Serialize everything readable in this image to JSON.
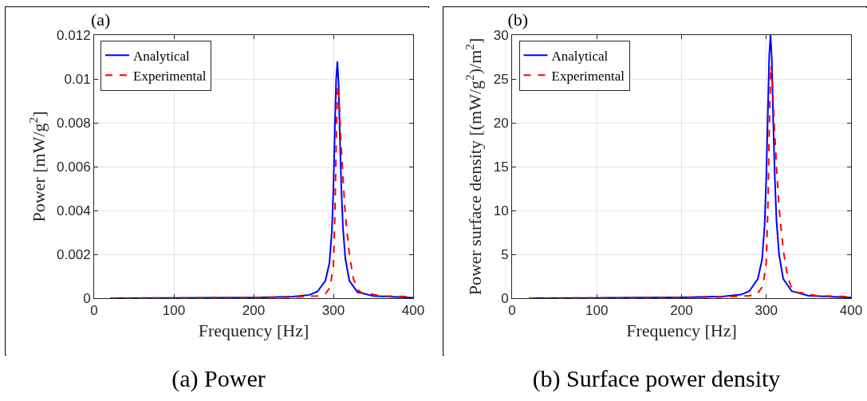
{
  "chart_data": [
    {
      "type": "line",
      "title": "(a)",
      "xlabel": "Frequency [Hz]",
      "ylabel": "Power [mW/g$^{2}$]",
      "annotations": [
        "(a) Power"
      ],
      "xlim": [
        0,
        400
      ],
      "xticks": [
        0,
        100,
        200,
        300,
        400
      ],
      "ylim": [
        0,
        0.012
      ],
      "yticks": [
        0,
        0.002,
        0.004,
        0.006,
        0.008,
        0.01,
        0.012
      ],
      "grid": true,
      "legend": "top left",
      "series": [
        {
          "name": "Analytical",
          "color": "#0000ff",
          "line_style": "solid",
          "x": [
            20,
            100,
            200,
            250,
            270,
            280,
            290,
            295,
            298,
            300,
            302,
            303.5,
            305,
            306.5,
            308,
            310,
            312,
            315,
            320,
            330,
            350,
            400
          ],
          "values": [
            0,
            1e-05,
            3e-05,
            7e-05,
            0.00015,
            0.0003,
            0.0008,
            0.0016,
            0.003,
            0.005,
            0.008,
            0.01,
            0.0108,
            0.0098,
            0.0075,
            0.005,
            0.0032,
            0.0018,
            0.0008,
            0.00028,
            0.0001,
            2e-05
          ]
        },
        {
          "name": "Experimental",
          "color": "#ff0000",
          "line_style": "dashed",
          "x": [
            20,
            200,
            250,
            280,
            290,
            296,
            300,
            302,
            304,
            305.5,
            307,
            309,
            312,
            315,
            320,
            325,
            330,
            335,
            345,
            360,
            400
          ],
          "values": [
            0,
            2e-05,
            5e-05,
            0.0001,
            0.0002,
            0.0005,
            0.0015,
            0.004,
            0.008,
            0.0097,
            0.0092,
            0.0075,
            0.0055,
            0.0038,
            0.002,
            0.0009,
            0.0004,
            0.00025,
            0.0002,
            0.0001,
            6e-05
          ]
        }
      ]
    },
    {
      "type": "line",
      "title": "(b)",
      "xlabel": "Frequency [Hz]",
      "ylabel": "Power surface density [(mW/g$^{2}$)/m$^{2}$]",
      "annotations": [
        "(b) Surface power density"
      ],
      "xlim": [
        0,
        400
      ],
      "xticks": [
        0,
        100,
        200,
        300,
        400
      ],
      "ylim": [
        0,
        30
      ],
      "yticks": [
        0,
        5,
        10,
        15,
        20,
        25,
        30
      ],
      "grid": true,
      "legend": "top left",
      "series": [
        {
          "name": "Analytical",
          "color": "#0000ff",
          "line_style": "solid",
          "x": [
            20,
            100,
            200,
            250,
            270,
            280,
            290,
            295,
            298,
            300,
            302,
            303.5,
            305,
            306.5,
            308,
            310,
            312,
            315,
            320,
            330,
            350,
            400
          ],
          "values": [
            0,
            0.03,
            0.08,
            0.2,
            0.4,
            0.8,
            2.2,
            4.4,
            8.3,
            13.9,
            22,
            27.8,
            30,
            27.2,
            20.8,
            13.9,
            8.9,
            5,
            2.2,
            0.8,
            0.28,
            0.06
          ]
        },
        {
          "name": "Experimental",
          "color": "#ff0000",
          "line_style": "dashed",
          "x": [
            20,
            200,
            250,
            280,
            290,
            296,
            300,
            302,
            304,
            305.5,
            307,
            309,
            312,
            315,
            320,
            325,
            330,
            335,
            345,
            360,
            400
          ],
          "values": [
            0,
            0.05,
            0.14,
            0.27,
            0.55,
            1.4,
            4.1,
            11,
            21.9,
            26.5,
            25.1,
            20.5,
            15,
            10.4,
            5.5,
            2.5,
            1.1,
            0.7,
            0.55,
            0.27,
            0.16
          ]
        }
      ]
    }
  ]
}
